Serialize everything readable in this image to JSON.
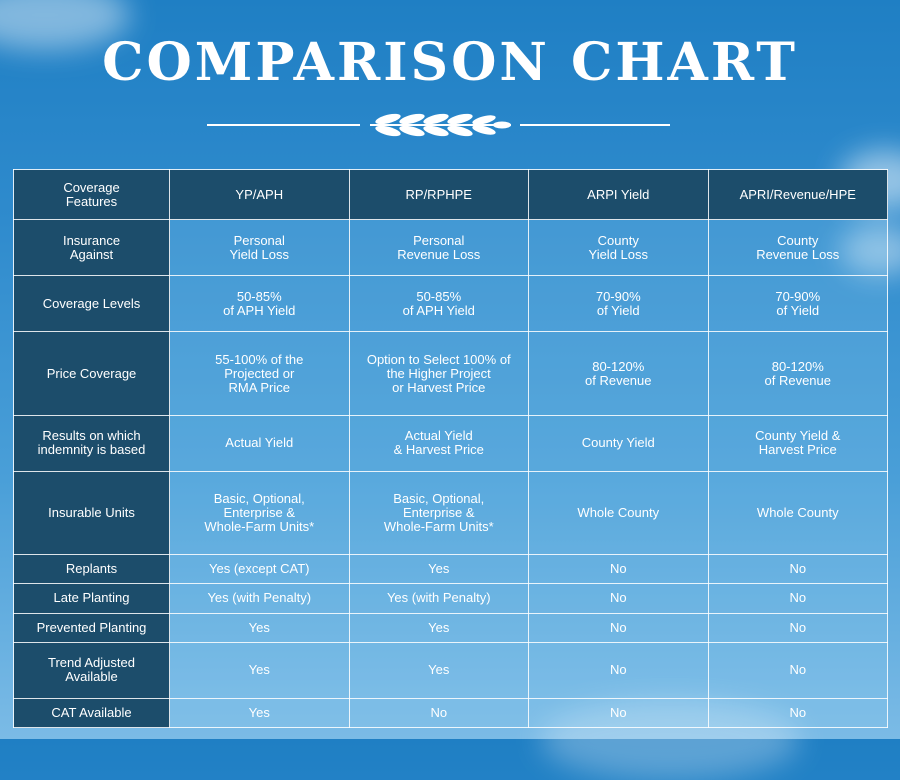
{
  "title": "COMPARISON CHART",
  "table": {
    "headers": [
      "Coverage\nFeatures",
      "YP/APH",
      "RP/RPHPE",
      "ARPI Yield",
      "APRI/Revenue/HPE"
    ],
    "rows": [
      [
        "Insurance\nAgainst",
        "Personal\nYield Loss",
        "Personal\nRevenue Loss",
        "County\nYield Loss",
        "County\nRevenue Loss"
      ],
      [
        "Coverage Levels",
        "50-85%\nof APH Yield",
        "50-85%\nof APH Yield",
        "70-90%\nof Yield",
        "70-90%\nof Yield"
      ],
      [
        "Price Coverage",
        "55-100% of the\nProjected or\nRMA Price",
        "Option to Select 100% of\nthe Higher Project\nor Harvest Price",
        "80-120%\nof Revenue",
        "80-120%\nof Revenue"
      ],
      [
        "Results on which\nindemnity is based",
        "Actual Yield",
        "Actual Yield\n& Harvest Price",
        "County Yield",
        "County Yield &\nHarvest Price"
      ],
      [
        "Insurable Units",
        "Basic, Optional,\nEnterprise &\nWhole-Farm Units*",
        "Basic, Optional,\nEnterprise &\nWhole-Farm Units*",
        "Whole County",
        "Whole County"
      ],
      [
        "Replants",
        "Yes (except CAT)",
        "Yes",
        "No",
        "No"
      ],
      [
        "Late Planting",
        "Yes (with Penalty)",
        "Yes (with Penalty)",
        "No",
        "No"
      ],
      [
        "Prevented Planting",
        "Yes",
        "Yes",
        "No",
        "No"
      ],
      [
        "Trend Adjusted\nAvailable",
        "Yes",
        "Yes",
        "No",
        "No"
      ],
      [
        "CAT Available",
        "Yes",
        "No",
        "No",
        "No"
      ]
    ]
  },
  "decoration": {
    "icon": "wheat-icon"
  }
}
